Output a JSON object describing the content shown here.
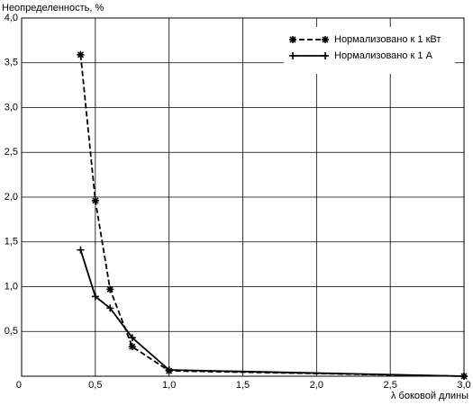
{
  "chart_data": {
    "type": "line",
    "ylabel": "Неопределенность, %",
    "xlabel": "λ боковой длины",
    "x": [
      0.4,
      0.5,
      0.6,
      0.75,
      1.0,
      3.0
    ],
    "series": [
      {
        "name": "Нормализовано к 1 кВт",
        "color": "#000000",
        "linestyle": "dashed",
        "marker": "star",
        "values": [
          3.59,
          1.96,
          0.97,
          0.33,
          0.06,
          0.0
        ]
      },
      {
        "name": "Нормализовано к 1 А",
        "color": "#000000",
        "linestyle": "solid",
        "marker": "plus",
        "values": [
          1.41,
          0.89,
          0.76,
          0.43,
          0.07,
          0.0
        ]
      }
    ],
    "xlim": [
      0,
      3.0
    ],
    "ylim": [
      0,
      4.0
    ],
    "xticks": [
      0,
      {
        "value": 0.5,
        "label": "0,5"
      },
      {
        "value": 1.0,
        "label": "1,0"
      },
      {
        "value": 1.5,
        "label": "1,5"
      },
      {
        "value": 2.0,
        "label": "2,0"
      },
      {
        "value": 2.5,
        "label": "2,5"
      },
      {
        "value": 3.0,
        "label": "3,0"
      }
    ],
    "yticks": [
      {
        "value": 0.5,
        "label": "0,5"
      },
      {
        "value": 1.0,
        "label": "1,0"
      },
      {
        "value": 1.5,
        "label": "1,5"
      },
      {
        "value": 2.0,
        "label": "2,0"
      },
      {
        "value": 2.5,
        "label": "2,5"
      },
      {
        "value": 3.0,
        "label": "3,0"
      },
      {
        "value": 3.5,
        "label": "3,5"
      },
      {
        "value": 4.0,
        "label": "4,0"
      }
    ],
    "grid": true,
    "legend": "upper right"
  }
}
